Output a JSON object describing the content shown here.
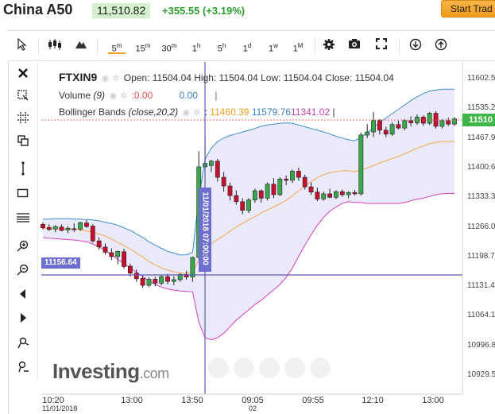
{
  "header": {
    "symbol": "China A50",
    "last_price": "11,510.82",
    "change": "+355.55 (+3.19%)",
    "trade_button": "Start Trad"
  },
  "toolbar": {
    "intervals": [
      {
        "base": "5",
        "sup": "m",
        "active": true
      },
      {
        "base": "15",
        "sup": "m",
        "active": false
      },
      {
        "base": "30",
        "sup": "m",
        "active": false
      },
      {
        "base": "1",
        "sup": "h",
        "active": false
      },
      {
        "base": "5",
        "sup": "h",
        "active": false
      },
      {
        "base": "1",
        "sup": "d",
        "active": false
      },
      {
        "base": "1",
        "sup": "w",
        "active": false
      },
      {
        "base": "1",
        "sup": "M",
        "active": false
      }
    ],
    "icons": [
      "cursor-icon",
      "candles-icon",
      "mountain-icon",
      "gear-icon",
      "camera-icon",
      "fullscreen-icon",
      "download-icon",
      "upload-icon"
    ]
  },
  "left_tools": [
    "close-icon",
    "zoom-area-icon",
    "crosshair-icon",
    "copy-icon",
    "vertical-line-icon",
    "rectangle-icon",
    "horizontal-lines-icon",
    "zoom-in-icon",
    "zoom-out-icon",
    "scroll-left-icon",
    "scroll-right-icon",
    "magnet-icon",
    "measure-icon"
  ],
  "legend": {
    "instrument": "FTXIN9",
    "ohlc": "Open: 11504.04 High: 11504.04 Low: 11504.04 Close: 11504.04",
    "volume_label": "Volume",
    "volume_param": "(9)",
    "volume_values": [
      ":0.00",
      "0.00"
    ],
    "bb_label": "Bollinger Bands",
    "bb_param": "(close,20,2)",
    "bb_values": [
      "11460.39",
      "11579.76",
      "11341.02"
    ],
    "bb_colors": [
      "#f0a020",
      "#3b7fc4",
      "#c23fa6"
    ]
  },
  "crosshair": {
    "price_label": "11156.64",
    "time_label": "11/01/2018 07:00:00"
  },
  "price_axis": [
    "11602.5",
    "11535.2",
    "11467.9",
    "11400.6",
    "11333.3",
    "11266.0",
    "11198.7",
    "11131.4",
    "11064.1",
    "10996.8",
    "10929.5"
  ],
  "current_price_tag": "11510",
  "time_axis": [
    {
      "label": "10:20",
      "sub": "11/01/2018"
    },
    {
      "label": "13:00",
      "sub": ""
    },
    {
      "label": "13:50",
      "sub": ""
    },
    {
      "label": "09:05",
      "sub": "02"
    },
    {
      "label": "09:55",
      "sub": ""
    },
    {
      "label": "12:10",
      "sub": ""
    },
    {
      "label": "13:00",
      "sub": ""
    }
  ],
  "branding": {
    "brand": "Investing",
    "domain": ".com"
  },
  "colors": {
    "up": "#3aa84a",
    "down": "#c8102e",
    "band_fill": "#e8e6fb",
    "upper": "#3b8fd0",
    "lower": "#d63fbd",
    "basis": "#f4a84a",
    "crosshair": "#5b5bb0",
    "price_line": "#e86a6a"
  },
  "chart_data": {
    "type": "candlestick",
    "ylim": [
      10929.5,
      11602.5
    ],
    "candles": [
      [
        11270,
        11275,
        11258,
        11262
      ],
      [
        11263,
        11270,
        11255,
        11258
      ],
      [
        11259,
        11268,
        11252,
        11265
      ],
      [
        11264,
        11270,
        11254,
        11256
      ],
      [
        11257,
        11266,
        11250,
        11261
      ],
      [
        11260,
        11272,
        11252,
        11258
      ],
      [
        11259,
        11276,
        11255,
        11274
      ],
      [
        11273,
        11280,
        11262,
        11265
      ],
      [
        11266,
        11270,
        11228,
        11232
      ],
      [
        11232,
        11240,
        11212,
        11218
      ],
      [
        11218,
        11226,
        11200,
        11206
      ],
      [
        11205,
        11215,
        11188,
        11196
      ],
      [
        11196,
        11210,
        11178,
        11208
      ],
      [
        11207,
        11214,
        11168,
        11173
      ],
      [
        11174,
        11180,
        11150,
        11158
      ],
      [
        11158,
        11166,
        11138,
        11145
      ],
      [
        11146,
        11152,
        11124,
        11130
      ],
      [
        11130,
        11148,
        11126,
        11144
      ],
      [
        11144,
        11150,
        11128,
        11135
      ],
      [
        11135,
        11153,
        11130,
        11150
      ],
      [
        11150,
        11156,
        11132,
        11139
      ],
      [
        11139,
        11151,
        11130,
        11143
      ],
      [
        11143,
        11158,
        11138,
        11155
      ],
      [
        11155,
        11163,
        11143,
        11149
      ],
      [
        11149,
        11196,
        11138,
        11194
      ],
      [
        11194,
        11438,
        11188,
        11402
      ],
      [
        11402,
        11470,
        11395,
        11410
      ],
      [
        11405,
        11418,
        11390,
        11415
      ],
      [
        11415,
        11420,
        11368,
        11378
      ],
      [
        11378,
        11390,
        11345,
        11358
      ],
      [
        11358,
        11366,
        11325,
        11336
      ],
      [
        11336,
        11348,
        11315,
        11322
      ],
      [
        11322,
        11330,
        11293,
        11302
      ],
      [
        11302,
        11330,
        11296,
        11326
      ],
      [
        11326,
        11352,
        11320,
        11347
      ],
      [
        11347,
        11350,
        11320,
        11330
      ],
      [
        11330,
        11366,
        11325,
        11362
      ],
      [
        11362,
        11376,
        11330,
        11338
      ],
      [
        11338,
        11378,
        11335,
        11374
      ],
      [
        11374,
        11382,
        11360,
        11371
      ],
      [
        11371,
        11396,
        11365,
        11392
      ],
      [
        11392,
        11400,
        11370,
        11378
      ],
      [
        11378,
        11384,
        11350,
        11356
      ],
      [
        11356,
        11366,
        11338,
        11344
      ],
      [
        11344,
        11354,
        11323,
        11328
      ],
      [
        11328,
        11345,
        11324,
        11340
      ],
      [
        11340,
        11352,
        11330,
        11332
      ],
      [
        11332,
        11348,
        11328,
        11345
      ],
      [
        11345,
        11350,
        11333,
        11338
      ],
      [
        11338,
        11346,
        11330,
        11343
      ],
      [
        11343,
        11349,
        11336,
        11340
      ],
      [
        11340,
        11480,
        11336,
        11475
      ],
      [
        11475,
        11500,
        11468,
        11482
      ],
      [
        11482,
        11528,
        11470,
        11508
      ],
      [
        11508,
        11512,
        11476,
        11486
      ],
      [
        11486,
        11494,
        11470,
        11477
      ],
      [
        11477,
        11504,
        11473,
        11499
      ],
      [
        11499,
        11508,
        11488,
        11491
      ],
      [
        11491,
        11512,
        11486,
        11508
      ],
      [
        11508,
        11518,
        11495,
        11503
      ],
      [
        11503,
        11522,
        11498,
        11516
      ],
      [
        11516,
        11520,
        11496,
        11502
      ],
      [
        11502,
        11528,
        11498,
        11525
      ],
      [
        11525,
        11530,
        11490,
        11495
      ],
      [
        11495,
        11512,
        11490,
        11508
      ],
      [
        11508,
        11515,
        11496,
        11500
      ],
      [
        11500,
        11516,
        11496,
        11512
      ]
    ],
    "bb_upper": [
      11282,
      11282,
      11283,
      11283,
      11283,
      11282,
      11282,
      11281,
      11280,
      11278,
      11275,
      11272,
      11268,
      11262,
      11256,
      11248,
      11240,
      11230,
      11222,
      11215,
      11208,
      11204,
      11200,
      11200,
      11206,
      11330,
      11420,
      11445,
      11460,
      11468,
      11474,
      11478,
      11482,
      11486,
      11490,
      11495,
      11498,
      11500,
      11502,
      11503,
      11502,
      11498,
      11494,
      11490,
      11486,
      11482,
      11478,
      11472,
      11468,
      11464,
      11462,
      11470,
      11480,
      11492,
      11504,
      11514,
      11524,
      11534,
      11544,
      11554,
      11563,
      11570,
      11576,
      11578,
      11580,
      11580,
      11580
    ],
    "bb_lower": [
      11240,
      11238,
      11237,
      11236,
      11235,
      11234,
      11232,
      11230,
      11225,
      11218,
      11210,
      11200,
      11190,
      11180,
      11170,
      11160,
      11150,
      11140,
      11132,
      11126,
      11122,
      11119,
      11117,
      11116,
      11115,
      11045,
      11010,
      11005,
      11010,
      11020,
      11035,
      11050,
      11062,
      11074,
      11086,
      11096,
      11108,
      11120,
      11132,
      11148,
      11170,
      11196,
      11222,
      11246,
      11268,
      11286,
      11300,
      11310,
      11318,
      11322,
      11320,
      11320,
      11318,
      11318,
      11318,
      11318,
      11318,
      11318,
      11320,
      11324,
      11328,
      11330,
      11334,
      11338,
      11340,
      11341,
      11341
    ],
    "bb_basis": [
      11261,
      11260,
      11260,
      11259,
      11259,
      11258,
      11257,
      11255,
      11252,
      11248,
      11243,
      11236,
      11229,
      11221,
      11213,
      11204,
      11195,
      11185,
      11177,
      11170,
      11165,
      11161,
      11158,
      11158,
      11160,
      11188,
      11215,
      11225,
      11235,
      11244,
      11254,
      11264,
      11272,
      11280,
      11288,
      11296,
      11303,
      11310,
      11317,
      11325,
      11336,
      11347,
      11358,
      11368,
      11377,
      11384,
      11389,
      11391,
      11393,
      11393,
      11391,
      11395,
      11399,
      11405,
      11411,
      11416,
      11421,
      11426,
      11432,
      11438,
      11445,
      11450,
      11455,
      11458,
      11460,
      11460,
      11460
    ]
  }
}
